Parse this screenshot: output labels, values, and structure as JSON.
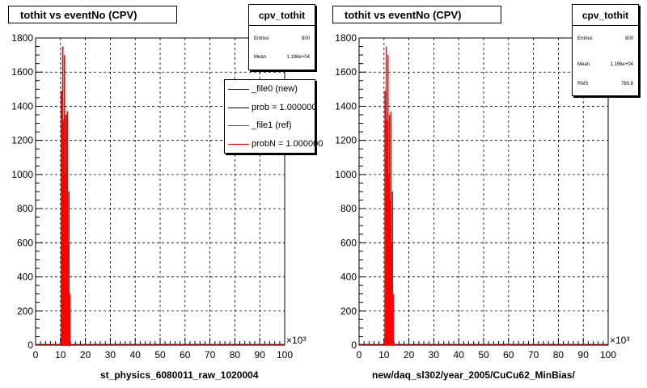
{
  "pads": [
    {
      "title": "tothit vs eventNo (CPV)",
      "stats": {
        "name": "cpv_tothit",
        "rows": [
          {
            "label": "Entries",
            "value": "800"
          },
          {
            "label": "Mean",
            "value": "1.196e+04"
          }
        ]
      },
      "legend": [
        {
          "label": "_file0 (new)",
          "color": "#000000"
        },
        {
          "label": "prob = 1.000000",
          "color": "#000000"
        },
        {
          "label": "_file1 (ref)",
          "color": "#ff0000"
        },
        {
          "label": "probN = 1.000000",
          "color": "#ff0000"
        }
      ],
      "footer": "st_physics_6080011_raw_1020004"
    },
    {
      "title": "tothit vs eventNo (CPV)",
      "stats": {
        "name": "cpv_tothit",
        "rows": [
          {
            "label": "Entries",
            "value": "800"
          },
          {
            "label": "Mean",
            "value": "1.196e+04"
          },
          {
            "label": "RMS",
            "value": "760.8"
          }
        ]
      },
      "legend": [],
      "footer": "new/daq_sl302/year_2005/CuCu62_MinBias/"
    }
  ],
  "colors": {
    "reference": "#ff0000",
    "new": "#000000",
    "grid": "#000000"
  },
  "chart_data": [
    {
      "type": "line",
      "title": "tothit vs eventNo (CPV)",
      "xlabel": "",
      "ylabel": "",
      "x_multiplier": "×10³",
      "xlim": [
        0,
        100
      ],
      "ylim": [
        0,
        1800
      ],
      "x_ticks": [
        0,
        10,
        20,
        30,
        40,
        50,
        60,
        70,
        80,
        90,
        100
      ],
      "y_ticks": [
        0,
        200,
        400,
        600,
        800,
        1000,
        1200,
        1400,
        1600,
        1800
      ],
      "grid": true,
      "legend_position": "top-right",
      "series": [
        {
          "name": "_file1 (ref)",
          "color": "#ff0000",
          "x": [
            10.4,
            10.9,
            11.3,
            11.6,
            11.9,
            12.2,
            12.5,
            12.8,
            13.1,
            13.4,
            13.7,
            14.0
          ],
          "y": [
            1490,
            1750,
            1320,
            1700,
            1000,
            1350,
            850,
            1370,
            600,
            900,
            300,
            0
          ]
        },
        {
          "name": "_file0 (new)",
          "color": "#000000",
          "x": [
            10.4,
            10.9,
            11.3,
            11.6,
            11.9,
            12.2,
            12.5,
            12.8,
            13.1,
            13.4,
            13.7,
            14.0
          ],
          "y": [
            1490,
            1750,
            1320,
            1700,
            1000,
            1350,
            850,
            1370,
            600,
            900,
            300,
            0
          ]
        }
      ]
    },
    {
      "type": "line",
      "title": "tothit vs eventNo (CPV)",
      "xlabel": "",
      "ylabel": "",
      "x_multiplier": "×10³",
      "xlim": [
        0,
        100
      ],
      "ylim": [
        0,
        1800
      ],
      "x_ticks": [
        0,
        10,
        20,
        30,
        40,
        50,
        60,
        70,
        80,
        90,
        100
      ],
      "y_ticks": [
        0,
        200,
        400,
        600,
        800,
        1000,
        1200,
        1400,
        1600,
        1800
      ],
      "grid": true,
      "series": [
        {
          "name": "",
          "color": "#ff0000",
          "x": [
            10.4,
            10.9,
            11.3,
            11.6,
            11.9,
            12.2,
            12.5,
            12.8,
            13.1,
            13.4,
            13.7,
            14.0
          ],
          "y": [
            1490,
            1750,
            1320,
            1700,
            1000,
            1350,
            850,
            1370,
            600,
            900,
            300,
            0
          ]
        }
      ]
    }
  ]
}
